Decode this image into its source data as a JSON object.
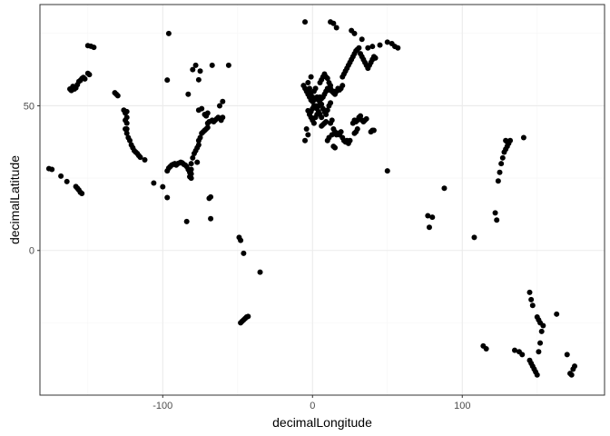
{
  "chart_data": {
    "type": "scatter",
    "title": "",
    "xlabel": "decimalLongitude",
    "ylabel": "decimalLatitude",
    "xlim": [
      -182,
      195
    ],
    "ylim": [
      -50,
      85
    ],
    "x_ticks": [
      -100,
      0,
      100
    ],
    "y_ticks": [
      0,
      50
    ],
    "x_tick_labels": [
      "-100",
      "0",
      "100"
    ],
    "y_tick_labels": [
      "0",
      "50"
    ],
    "grid": true,
    "legend": "none",
    "colors": {
      "points": "#000000",
      "grid_major": "#ebebeb",
      "grid_minor": "#f5f5f5",
      "panel_border": "#333333",
      "background": "#ffffff"
    },
    "series": [
      {
        "points": [
          [
            -176,
            28.3
          ],
          [
            -174,
            28
          ],
          [
            -168,
            25.7
          ],
          [
            -164,
            23.8
          ],
          [
            -158,
            22.1
          ],
          [
            -157,
            21.5
          ],
          [
            -156,
            20.9
          ],
          [
            -155,
            20.1
          ],
          [
            -154,
            19.7
          ],
          [
            -162,
            55.8
          ],
          [
            -161,
            55.3
          ],
          [
            -160,
            56.7
          ],
          [
            -159,
            55.8
          ],
          [
            -158,
            56.2
          ],
          [
            -157,
            57.3
          ],
          [
            -156,
            58.4
          ],
          [
            -155,
            58.8
          ],
          [
            -154,
            59.4
          ],
          [
            -153,
            59.8
          ],
          [
            -152,
            59.3
          ],
          [
            -150,
            61.2
          ],
          [
            -149,
            60.8
          ],
          [
            -150,
            70.8
          ],
          [
            -148,
            70.6
          ],
          [
            -146,
            70.2
          ],
          [
            -132,
            54.5
          ],
          [
            -131,
            54
          ],
          [
            -130,
            53.5
          ],
          [
            -126,
            48.5
          ],
          [
            -125,
            47.5
          ],
          [
            -125,
            45
          ],
          [
            -125,
            42
          ],
          [
            -124,
            48
          ],
          [
            -124,
            46
          ],
          [
            -124,
            44
          ],
          [
            -124,
            42
          ],
          [
            -124,
            40.5
          ],
          [
            -123,
            39
          ],
          [
            -122,
            38
          ],
          [
            -121,
            36.5
          ],
          [
            -120,
            35.5
          ],
          [
            -119,
            34.5
          ],
          [
            -118,
            34
          ],
          [
            -117,
            33.5
          ],
          [
            -116,
            32.8
          ],
          [
            -115,
            32.2
          ],
          [
            -112,
            31.3
          ],
          [
            -106,
            23.3
          ],
          [
            -100,
            22
          ],
          [
            -97,
            18.3
          ],
          [
            -97,
            27.5
          ],
          [
            -96,
            28.5
          ],
          [
            -95,
            29
          ],
          [
            -94,
            29.5
          ],
          [
            -93,
            29.8
          ],
          [
            -92,
            30
          ],
          [
            -91,
            29.5
          ],
          [
            -90,
            30
          ],
          [
            -89,
            30.2
          ],
          [
            -88,
            30.5
          ],
          [
            -87,
            30.3
          ],
          [
            -86,
            29.8
          ],
          [
            -85,
            29.5
          ],
          [
            -84,
            29
          ],
          [
            -83,
            28
          ],
          [
            -82,
            27
          ],
          [
            -82,
            25.5
          ],
          [
            -81,
            25
          ],
          [
            -81,
            26.5
          ],
          [
            -81,
            28
          ],
          [
            -81,
            30
          ],
          [
            -80,
            32
          ],
          [
            -79,
            33.5
          ],
          [
            -78,
            34.5
          ],
          [
            -77,
            35.5
          ],
          [
            -76,
            36.5
          ],
          [
            -76,
            38
          ],
          [
            -75,
            39
          ],
          [
            -74,
            40.5
          ],
          [
            -73,
            41
          ],
          [
            -72,
            41.5
          ],
          [
            -71,
            42
          ],
          [
            -70,
            42.5
          ],
          [
            -70,
            44
          ],
          [
            -69,
            44.5
          ],
          [
            -67,
            45
          ],
          [
            -66,
            44.5
          ],
          [
            -65,
            45
          ],
          [
            -64,
            45.5
          ],
          [
            -63,
            46
          ],
          [
            -61,
            45
          ],
          [
            -60,
            46
          ],
          [
            -77,
            30.5
          ],
          [
            -97,
            58.9
          ],
          [
            -96,
            75
          ],
          [
            -84,
            10
          ],
          [
            -83,
            54
          ],
          [
            -80,
            62.5
          ],
          [
            -78,
            64
          ],
          [
            -76,
            59
          ],
          [
            -76,
            48.5
          ],
          [
            -75,
            62
          ],
          [
            -74,
            49
          ],
          [
            -72,
            47
          ],
          [
            -71,
            46.5
          ],
          [
            -70,
            47.5
          ],
          [
            -69,
            18
          ],
          [
            -68,
            18.5
          ],
          [
            -68,
            11
          ],
          [
            -67,
            64
          ],
          [
            -62,
            50
          ],
          [
            -60,
            51.5
          ],
          [
            -56,
            64
          ],
          [
            -49,
            4.5
          ],
          [
            -48,
            3.5
          ],
          [
            -46,
            -1
          ],
          [
            -35,
            -7.5
          ],
          [
            -48,
            -25
          ],
          [
            -47,
            -24.5
          ],
          [
            -46,
            -24
          ],
          [
            -45,
            -23.5
          ],
          [
            -44,
            -23
          ],
          [
            -43,
            -22.8
          ],
          [
            -5,
            38
          ],
          [
            -4,
            42
          ],
          [
            -3,
            40
          ],
          [
            -3,
            48.3
          ],
          [
            -2,
            53
          ],
          [
            -1,
            52
          ],
          [
            0,
            51.5
          ],
          [
            1,
            52
          ],
          [
            -5,
            56
          ],
          [
            -6,
            57
          ],
          [
            -3,
            58
          ],
          [
            -1,
            60
          ],
          [
            -4,
            55
          ],
          [
            -3,
            54
          ],
          [
            -2,
            56
          ],
          [
            -1,
            54.5
          ],
          [
            0,
            53
          ],
          [
            1,
            55
          ],
          [
            2,
            56
          ],
          [
            3,
            53
          ],
          [
            4,
            52
          ],
          [
            5,
            53
          ],
          [
            6,
            52.5
          ],
          [
            7,
            53
          ],
          [
            8,
            54
          ],
          [
            9,
            55
          ],
          [
            10,
            56
          ],
          [
            11,
            55.5
          ],
          [
            12,
            56
          ],
          [
            13,
            55
          ],
          [
            14,
            54.5
          ],
          [
            5,
            58
          ],
          [
            6,
            59
          ],
          [
            7,
            60
          ],
          [
            8,
            61
          ],
          [
            9,
            60
          ],
          [
            10,
            59.5
          ],
          [
            11,
            58
          ],
          [
            12,
            57
          ],
          [
            2,
            50
          ],
          [
            3,
            49
          ],
          [
            4,
            50
          ],
          [
            5,
            51
          ],
          [
            6,
            50.5
          ],
          [
            7,
            49
          ],
          [
            8,
            48
          ],
          [
            9,
            47
          ],
          [
            10,
            48.5
          ],
          [
            11,
            50
          ],
          [
            12,
            51
          ],
          [
            -1,
            46
          ],
          [
            0,
            45
          ],
          [
            1,
            44
          ],
          [
            2,
            46
          ],
          [
            3,
            47
          ],
          [
            4,
            48
          ],
          [
            5,
            47
          ],
          [
            6,
            46
          ],
          [
            -2,
            47
          ],
          [
            -1,
            48
          ],
          [
            0,
            49
          ],
          [
            1,
            50
          ],
          [
            14,
            55
          ],
          [
            15,
            54
          ],
          [
            16,
            55
          ],
          [
            17,
            56
          ],
          [
            18,
            55.5
          ],
          [
            19,
            56
          ],
          [
            20,
            57
          ],
          [
            13,
            40
          ],
          [
            14,
            42
          ],
          [
            15,
            41
          ],
          [
            16,
            40
          ],
          [
            17,
            40.5
          ],
          [
            18,
            40
          ],
          [
            19,
            41
          ],
          [
            20,
            39
          ],
          [
            21,
            38
          ],
          [
            22,
            37.5
          ],
          [
            23,
            38
          ],
          [
            24,
            37
          ],
          [
            25,
            38
          ],
          [
            14,
            36
          ],
          [
            15,
            35.5
          ],
          [
            10,
            38
          ],
          [
            11,
            39
          ],
          [
            8,
            44
          ],
          [
            9,
            44.5
          ],
          [
            7,
            43.5
          ],
          [
            6,
            43
          ],
          [
            12,
            44
          ],
          [
            13,
            45
          ],
          [
            27,
            44
          ],
          [
            28,
            45
          ],
          [
            29,
            44.5
          ],
          [
            30,
            45
          ],
          [
            31,
            46
          ],
          [
            32,
            46.5
          ],
          [
            33,
            45
          ],
          [
            34,
            44.5
          ],
          [
            35,
            45
          ],
          [
            36,
            45.5
          ],
          [
            30,
            42
          ],
          [
            29,
            41
          ],
          [
            28,
            40.5
          ],
          [
            39,
            41
          ],
          [
            40,
            41.5
          ],
          [
            41,
            41.5
          ],
          [
            20,
            60
          ],
          [
            21,
            61
          ],
          [
            22,
            62
          ],
          [
            23,
            63
          ],
          [
            24,
            64
          ],
          [
            25,
            65
          ],
          [
            26,
            66
          ],
          [
            27,
            67
          ],
          [
            28,
            68
          ],
          [
            29,
            69
          ],
          [
            30,
            69.5
          ],
          [
            31,
            70
          ],
          [
            32,
            68
          ],
          [
            33,
            67
          ],
          [
            34,
            66
          ],
          [
            35,
            65
          ],
          [
            36,
            64
          ],
          [
            37,
            63
          ],
          [
            38,
            64
          ],
          [
            39,
            65
          ],
          [
            40,
            66
          ],
          [
            41,
            67
          ],
          [
            42,
            66.5
          ],
          [
            -5,
            79
          ],
          [
            12,
            79
          ],
          [
            14,
            78.5
          ],
          [
            16,
            77
          ],
          [
            26,
            76
          ],
          [
            28,
            75
          ],
          [
            33,
            73
          ],
          [
            37,
            70
          ],
          [
            40,
            70.5
          ],
          [
            45,
            71
          ],
          [
            50,
            72
          ],
          [
            53,
            71.5
          ],
          [
            55,
            70.5
          ],
          [
            57,
            70
          ],
          [
            50,
            27.5
          ],
          [
            77,
            12
          ],
          [
            78,
            8
          ],
          [
            80,
            11.5
          ],
          [
            88,
            21.5
          ],
          [
            108,
            4.5
          ],
          [
            122,
            13
          ],
          [
            123,
            10.5
          ],
          [
            124,
            24
          ],
          [
            125,
            27
          ],
          [
            126,
            30
          ],
          [
            127,
            32
          ],
          [
            128,
            34
          ],
          [
            129,
            35
          ],
          [
            130,
            36
          ],
          [
            131,
            37
          ],
          [
            132,
            38
          ],
          [
            129,
            38
          ],
          [
            130,
            37.5
          ],
          [
            141,
            39
          ],
          [
            114,
            -33
          ],
          [
            116,
            -34
          ],
          [
            135,
            -34.5
          ],
          [
            138,
            -35
          ],
          [
            140,
            -36
          ],
          [
            145,
            -38
          ],
          [
            146,
            -39
          ],
          [
            147,
            -40
          ],
          [
            148,
            -41
          ],
          [
            149,
            -42
          ],
          [
            150,
            -43
          ],
          [
            151,
            -35
          ],
          [
            152,
            -32
          ],
          [
            153,
            -28
          ],
          [
            154,
            -26
          ],
          [
            145,
            -14.5
          ],
          [
            146,
            -17
          ],
          [
            147,
            -19
          ],
          [
            150,
            -23
          ],
          [
            151,
            -24
          ],
          [
            152,
            -25
          ],
          [
            163,
            -22
          ],
          [
            170,
            -36
          ],
          [
            172,
            -42.5
          ],
          [
            173,
            -43
          ],
          [
            174,
            -41
          ],
          [
            175,
            -40
          ]
        ]
      }
    ]
  }
}
